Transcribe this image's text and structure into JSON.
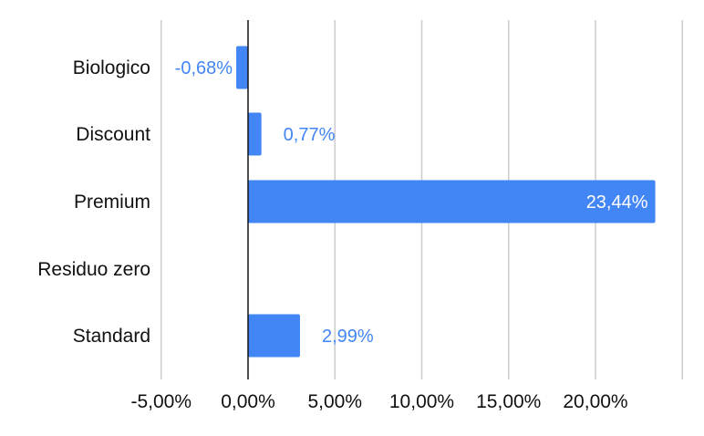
{
  "chart_data": {
    "type": "bar",
    "orientation": "horizontal",
    "categories": [
      "Biologico",
      "Discount",
      "Premium",
      "Residuo zero",
      "Standard"
    ],
    "values": [
      -0.68,
      0.77,
      23.44,
      null,
      2.99
    ],
    "data_labels": [
      "-0,68%",
      "0,77%",
      "23,44%",
      "",
      "2,99%"
    ],
    "x_ticks": [
      -5,
      0,
      5,
      10,
      15,
      20
    ],
    "x_tick_labels": [
      "-5,00%",
      "0,00%",
      "5,00%",
      "10,00%",
      "15,00%",
      "20,00%"
    ],
    "xlim": [
      -5,
      25
    ],
    "grid": true,
    "colors": {
      "bar": "#4285f4",
      "label_outside": "#4285f4",
      "label_inside": "#ffffff",
      "grid": "#cccccc",
      "zero_axis": "#111111"
    }
  }
}
